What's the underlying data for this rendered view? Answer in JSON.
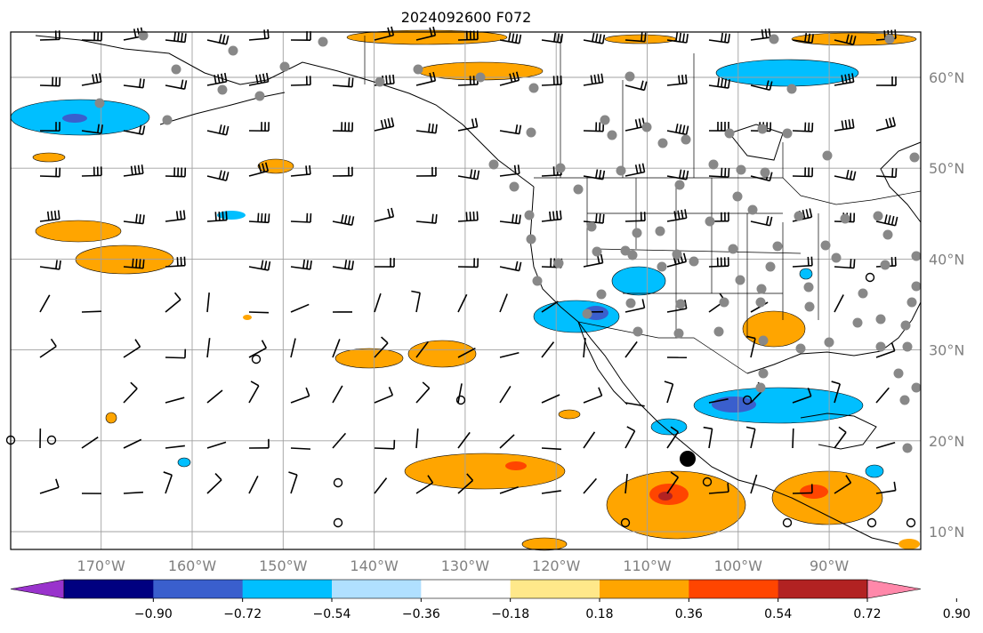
{
  "title": "2024092600 F072",
  "lat_ticks": [
    {
      "label": "60°N",
      "value": 60
    },
    {
      "label": "50°N",
      "value": 50
    },
    {
      "label": "40°N",
      "value": 40
    },
    {
      "label": "30°N",
      "value": 30
    },
    {
      "label": "20°N",
      "value": 20
    },
    {
      "label": "10°N",
      "value": 10
    }
  ],
  "lon_ticks": [
    {
      "label": "170°W",
      "value": -170
    },
    {
      "label": "160°W",
      "value": -160
    },
    {
      "label": "150°W",
      "value": -150
    },
    {
      "label": "140°W",
      "value": -140
    },
    {
      "label": "130°W",
      "value": -130
    },
    {
      "label": "120°W",
      "value": -120
    },
    {
      "label": "110°W",
      "value": -110
    },
    {
      "label": "100°W",
      "value": -100
    },
    {
      "label": "90°W",
      "value": -90
    }
  ],
  "colorbar": {
    "labels": [
      "−0.90",
      "−0.72",
      "−0.54",
      "−0.36",
      "−0.18",
      "0.18",
      "0.36",
      "0.54",
      "0.72",
      "0.90"
    ],
    "colors": [
      "#9933cc",
      "#000080",
      "#3a5fcd",
      "#00bfff",
      "#b0e0ff",
      "#ffffff",
      "#ffe88a",
      "#ffa500",
      "#ff4500",
      "#b22222",
      "#ff88aa"
    ]
  },
  "colors": {
    "ocean": "#ffffff",
    "grid": "#a0a0a0",
    "coast": "#000000",
    "station": "#808080",
    "positive": "#ffa500",
    "positive_strong": "#ff4500",
    "positive_light": "#ffe88a",
    "negative": "#00bfff",
    "negative_strong": "#3a5fcd",
    "negative_light": "#b0e0ff"
  }
}
